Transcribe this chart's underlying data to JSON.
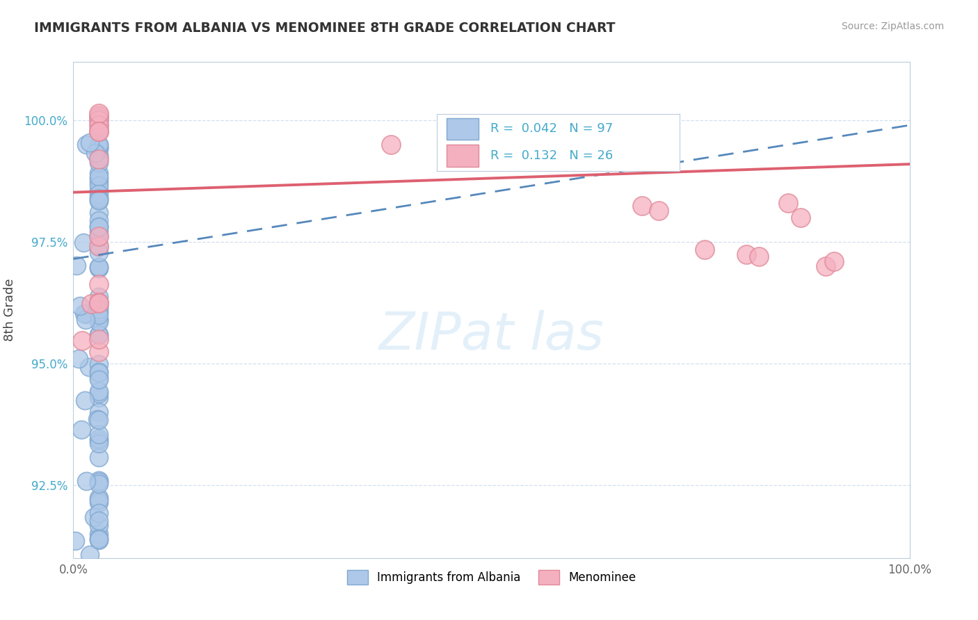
{
  "title": "IMMIGRANTS FROM ALBANIA VS MENOMINEE 8TH GRADE CORRELATION CHART",
  "source": "Source: ZipAtlas.com",
  "ylabel": "8th Grade",
  "yticks": [
    92.5,
    95.0,
    97.5,
    100.0
  ],
  "yticklabels": [
    "92.5%",
    "95.0%",
    "97.5%",
    "100.0%"
  ],
  "xtick_labels": [
    "0.0%",
    "100.0%"
  ],
  "xlim": [
    0.0,
    100.0
  ],
  "ylim": [
    91.0,
    101.2
  ],
  "legend_r1": "R =  0.042",
  "legend_n1": "N = 97",
  "legend_r2": "R =  0.132",
  "legend_n2": "N = 26",
  "blue_face_color": "#adc8e8",
  "blue_edge_color": "#80a8d0",
  "pink_face_color": "#f5b0c0",
  "pink_edge_color": "#e08898",
  "blue_line_color": "#5588bb",
  "pink_line_color": "#dd6070",
  "legend_color": "#44aacc",
  "grid_color": "#ccddee",
  "blue_trend_x": [
    0,
    100
  ],
  "blue_trend_y": [
    97.15,
    99.9
  ],
  "pink_trend_x": [
    0,
    100
  ],
  "pink_trend_y": [
    98.52,
    99.1
  ]
}
